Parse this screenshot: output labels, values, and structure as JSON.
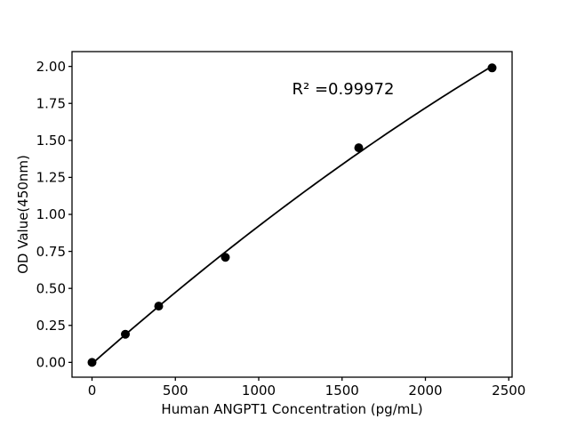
{
  "figure": {
    "background": "#ffffff",
    "foreground": "#000000"
  },
  "chart_data": {
    "type": "scatter",
    "title": "",
    "xlabel": "Human ANGPT1 Concentration (pg/mL)",
    "ylabel": "OD Value(450nm)",
    "annotation": {
      "text": "R² =0.99972",
      "x": 1200,
      "y": 1.8
    },
    "x": [
      0,
      200,
      400,
      800,
      1600,
      2400
    ],
    "y": [
      0.0,
      0.19,
      0.38,
      0.71,
      1.45,
      1.99
    ],
    "xlim": [
      -120,
      2520
    ],
    "ylim": [
      -0.1,
      2.1
    ],
    "xticks": [
      0,
      500,
      1000,
      1500,
      2000,
      2500
    ],
    "yticks": [
      0.0,
      0.25,
      0.5,
      0.75,
      1.0,
      1.25,
      1.5,
      1.75,
      2.0
    ],
    "ytick_decimals": 2,
    "grid": false,
    "legend": null,
    "marker_color": "#000000",
    "marker_radius": 5,
    "line_color": "#000000",
    "line_width": 1.8,
    "fit_curve": {
      "type": "quadratic",
      "a": -6.624e-08,
      "b": 0.0009967,
      "c": -0.0092,
      "x_start": 0,
      "x_end": 2400,
      "samples": 80
    }
  }
}
